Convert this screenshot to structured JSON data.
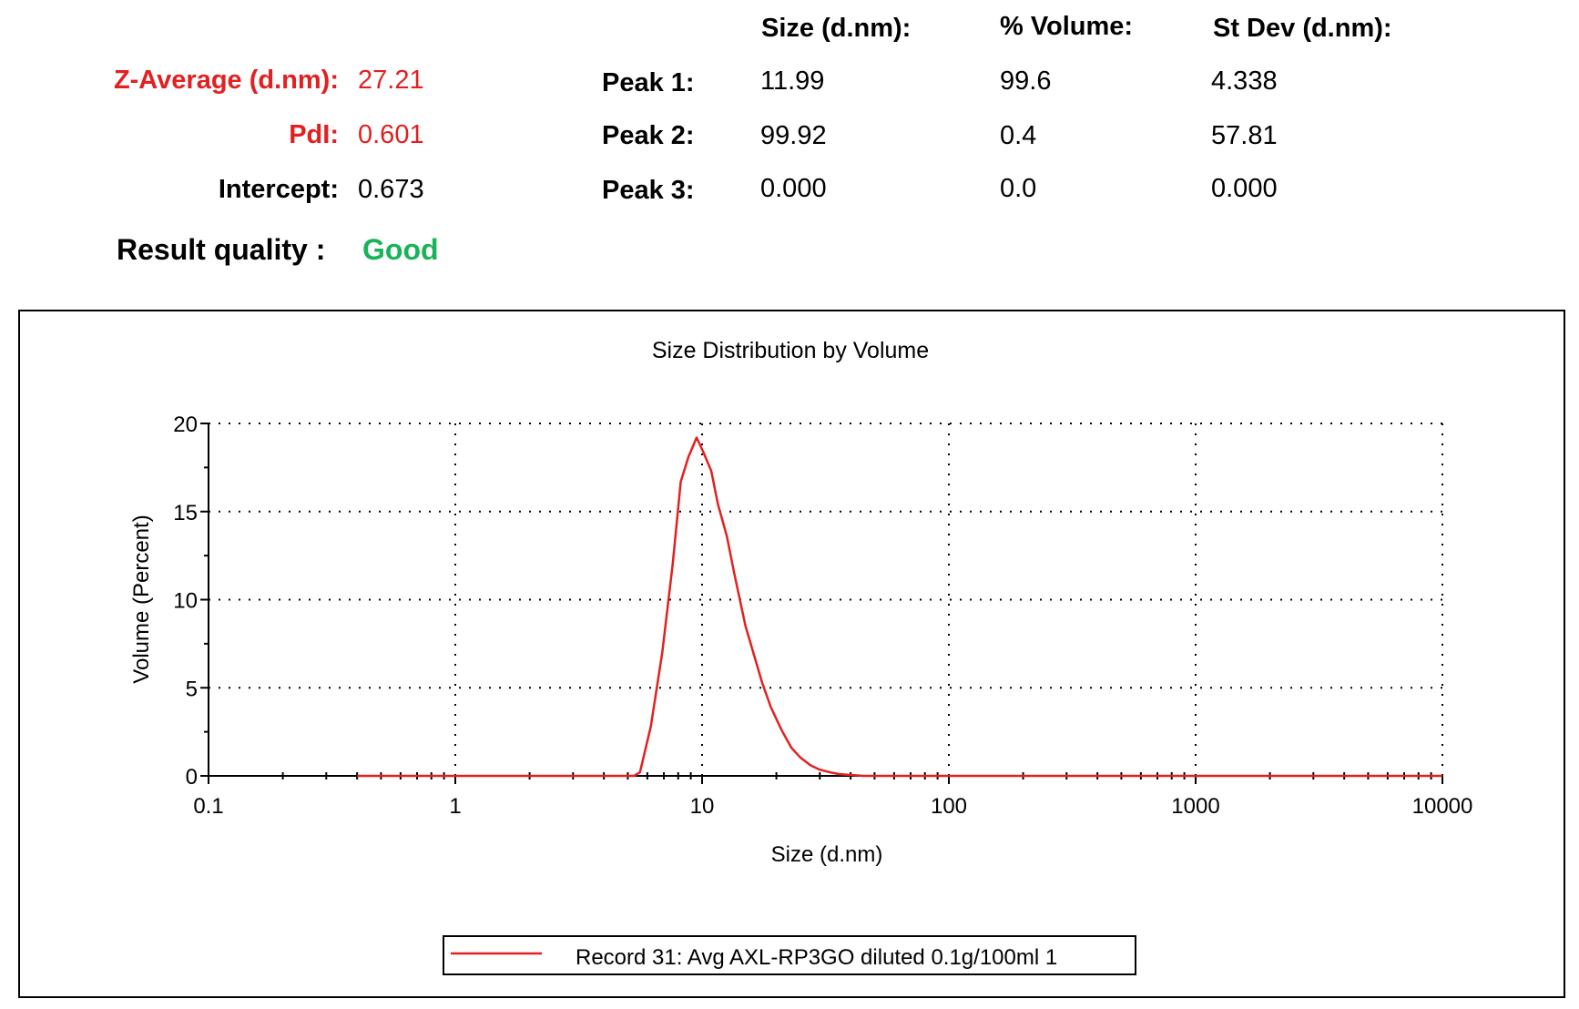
{
  "summary": {
    "z_average": {
      "label": "Z-Average (d.nm):",
      "value": "27.21"
    },
    "pdi": {
      "label": "PdI:",
      "value": "0.601"
    },
    "intercept": {
      "label": "Intercept:",
      "value": "0.673"
    },
    "result_quality": {
      "label": "Result quality :",
      "value": "Good"
    }
  },
  "peaks_table": {
    "headers": {
      "size": "Size (d.nm):",
      "volume": "% Volume:",
      "stdev": "St Dev (d.nm):"
    },
    "rows": [
      {
        "label": "Peak 1:",
        "size": "11.99",
        "volume": "99.6",
        "stdev": "4.338"
      },
      {
        "label": "Peak 2:",
        "size": "99.92",
        "volume": "0.4",
        "stdev": "57.81"
      },
      {
        "label": "Peak 3:",
        "size": "0.000",
        "volume": "0.0",
        "stdev": "0.000"
      }
    ]
  },
  "colors": {
    "label_red": "#e32020",
    "quality_good": "#19b45a",
    "series": "#e32020"
  },
  "chart_data": {
    "type": "line",
    "title": "Size Distribution by Volume",
    "xlabel": "Size (d.nm)",
    "ylabel": "Volume (Percent)",
    "x_scale": "log",
    "xlim": [
      0.1,
      10000
    ],
    "ylim": [
      0,
      20
    ],
    "x_ticks": [
      "0.1",
      "1",
      "10",
      "100",
      "1000",
      "10000"
    ],
    "y_ticks": [
      "0",
      "5",
      "10",
      "15",
      "20"
    ],
    "grid": true,
    "legend_position": "bottom-center",
    "series": [
      {
        "name": "Record 31: Avg AXL-RP3GO diluted 0.1g/100ml  1",
        "x": [
          0.4,
          1,
          2,
          4,
          5.3,
          5.6,
          6.2,
          6.9,
          7.6,
          8.2,
          8.8,
          9.5,
          10.1,
          10.9,
          11.6,
          12.6,
          13.5,
          15,
          17.5,
          19,
          21,
          23,
          25,
          27.5,
          30,
          33,
          36,
          40,
          45,
          100,
          1000,
          10000
        ],
        "y": [
          0,
          0,
          0,
          0,
          0,
          0.2,
          2.8,
          7,
          12,
          16.7,
          18.1,
          19.2,
          18.4,
          17.3,
          15.4,
          13.6,
          11.5,
          8.5,
          5.3,
          3.9,
          2.6,
          1.6,
          1.05,
          0.6,
          0.35,
          0.2,
          0.1,
          0.05,
          0,
          0,
          0,
          0
        ]
      }
    ]
  }
}
